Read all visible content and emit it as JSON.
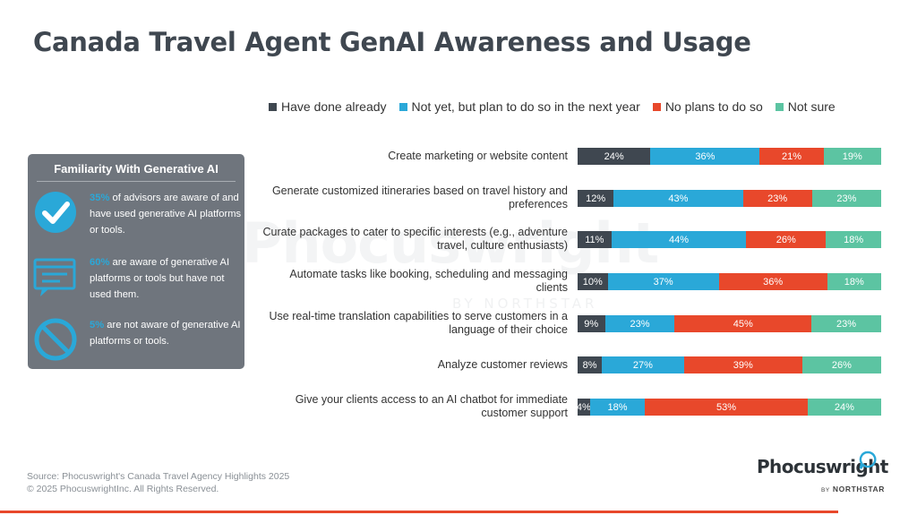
{
  "title": "Canada Travel Agent GenAI Awareness and Usage",
  "colors": {
    "done": "#3f4750",
    "plan": "#2aa8d8",
    "no_plans": "#e8482b",
    "not_sure": "#5cc4a2",
    "panel_bg": "#6f757d",
    "highlight": "#2aa8d8"
  },
  "watermark": {
    "word": "Phocuswright",
    "sub": "BY NORTHSTAR"
  },
  "panel": {
    "title": "Familiarity With Generative AI",
    "items": [
      {
        "icon": "checkmark-circle-icon",
        "pct": "35%",
        "text": " of advisors are aware of and have used generative AI platforms or tools."
      },
      {
        "icon": "chat-window-icon",
        "pct": "60%",
        "text": " are aware of generative AI platforms or tools but have not used them."
      },
      {
        "icon": "prohibited-icon",
        "pct": "5%",
        "text": " are not aware of generative AI platforms or tools."
      }
    ]
  },
  "chart_data": {
    "type": "bar",
    "stacked": true,
    "orientation": "horizontal",
    "normalized": true,
    "legend_position": "top",
    "categories": [
      "Create marketing or website content",
      "Generate customized itineraries based on travel history and preferences",
      "Curate packages to cater to specific interests (e.g., adventure travel, culture enthusiasts)",
      "Automate tasks like booking, scheduling and messaging clients",
      "Use real-time translation capabilities to serve customers in a language of their choice",
      "Analyze customer reviews",
      "Give your clients access to an AI chatbot for immediate customer support"
    ],
    "series": [
      {
        "name": "Have done already",
        "color": "#3f4750",
        "text_color": "#ffffff",
        "values": [
          24,
          12,
          11,
          10,
          9,
          8,
          4
        ]
      },
      {
        "name": "Not yet, but plan to do so in the next year",
        "color": "#2aa8d8",
        "text_color": "#ffffff",
        "values": [
          36,
          43,
          44,
          37,
          23,
          27,
          18
        ]
      },
      {
        "name": "No plans to do so",
        "color": "#e8482b",
        "text_color": "#ffffff",
        "values": [
          21,
          23,
          26,
          36,
          45,
          39,
          53
        ]
      },
      {
        "name": "Not sure",
        "color": "#5cc4a2",
        "text_color": "#ffffff",
        "values": [
          19,
          23,
          18,
          18,
          23,
          26,
          24
        ]
      }
    ],
    "value_suffix": "%"
  },
  "footer": {
    "source": "Source: Phocuswright's Canada Travel Agency Highlights 2025",
    "copyright": "© 2025 PhocuswrightInc. All Rights Reserved."
  },
  "logo": {
    "word": "Phocuswright",
    "by": "BY",
    "north": "NORTHSTAR",
    "icon": "speech-bubble-logo-icon"
  }
}
